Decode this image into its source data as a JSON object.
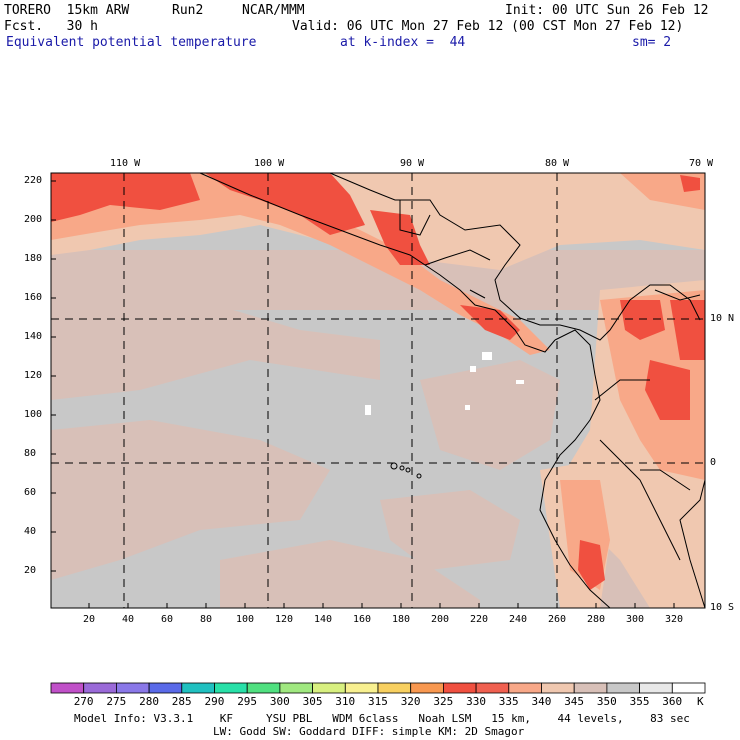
{
  "header": {
    "model": "TORERO  15km ARW",
    "run": "Run2",
    "org": "NCAR/MMM",
    "init": "Init: 00 UTC Sun 26 Feb 12",
    "fcst": "Fcst.   30 h",
    "valid": "Valid: 06 UTC Mon 27 Feb 12 (00 CST Mon 27 Feb 12)",
    "field": "Equivalent potential temperature",
    "level": "at k-index =  44",
    "smooth": "sm= 2"
  },
  "map": {
    "lon_labels": [
      "110 W",
      "100 W",
      "90 W",
      "80 W",
      "70 W"
    ],
    "lat_labels": [
      "10 N",
      "0",
      "10 S"
    ],
    "y_ticks": [
      "220",
      "200",
      "180",
      "160",
      "140",
      "120",
      "100",
      "80",
      "60",
      "40",
      "20"
    ],
    "x_ticks": [
      "20",
      "40",
      "60",
      "80",
      "100",
      "120",
      "140",
      "160",
      "180",
      "200",
      "220",
      "240",
      "260",
      "280",
      "300",
      "320"
    ]
  },
  "colorbar": {
    "labels": [
      "270",
      "275",
      "280",
      "285",
      "290",
      "295",
      "300",
      "305",
      "310",
      "315",
      "320",
      "325",
      "330",
      "335",
      "340",
      "345",
      "350",
      "355",
      "360"
    ],
    "unit": "K",
    "colors": [
      "#c050c8",
      "#9a6ad8",
      "#8a78e8",
      "#5a6ae8",
      "#20c0c0",
      "#28e0a8",
      "#50e080",
      "#a0e880",
      "#d8f080",
      "#f8f090",
      "#f8d060",
      "#f89850",
      "#f05040",
      "#f06050",
      "#f8a888",
      "#f0c8b0",
      "#d8c0b8",
      "#c8c8c8",
      "#e8e8e8",
      "#ffffff"
    ]
  },
  "footer": {
    "line1": "Model Info: V3.3.1    KF     YSU PBL   WDM 6class   Noah LSM   15 km,    44 levels,    83 sec",
    "line2": "LW: Godd SW: Goddard DIFF: simple KM: 2D Smagor"
  }
}
